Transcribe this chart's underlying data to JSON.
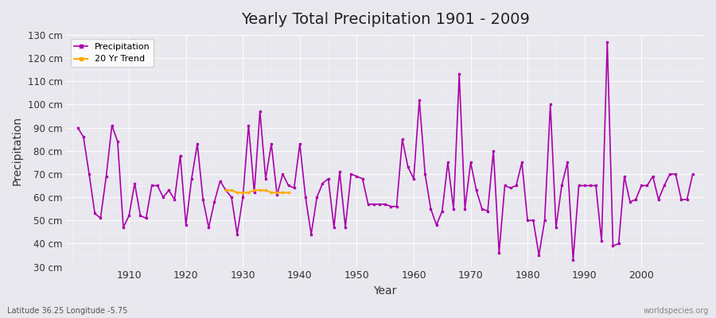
{
  "title": "Yearly Total Precipitation 1901 - 2009",
  "xlabel": "Year",
  "ylabel": "Precipitation",
  "subtitle": "Latitude 36.25 Longitude -5.75",
  "watermark": "worldspecies.org",
  "ylim": [
    30,
    130
  ],
  "ytick_labels": [
    "30 cm",
    "40 cm",
    "50 cm",
    "60 cm",
    "70 cm",
    "80 cm",
    "90 cm",
    "100 cm",
    "110 cm",
    "120 cm",
    "130 cm"
  ],
  "ytick_values": [
    30,
    40,
    50,
    60,
    70,
    80,
    90,
    100,
    110,
    120,
    130
  ],
  "bg_color": "#e8e8ee",
  "line_color": "#aa00aa",
  "trend_color": "#ffaa00",
  "precipitation": {
    "1901": 90,
    "1902": 86,
    "1903": 70,
    "1904": 53,
    "1905": 51,
    "1906": 69,
    "1907": 91,
    "1908": 84,
    "1909": 47,
    "1910": 52,
    "1911": 66,
    "1912": 52,
    "1913": 51,
    "1914": 65,
    "1915": 65,
    "1916": 60,
    "1917": 63,
    "1918": 59,
    "1919": 78,
    "1920": 48,
    "1921": 68,
    "1922": 83,
    "1923": 59,
    "1924": 47,
    "1925": 58,
    "1926": 67,
    "1927": 63,
    "1928": 60,
    "1929": 44,
    "1930": 60,
    "1931": 91,
    "1932": 62,
    "1933": 97,
    "1934": 68,
    "1935": 83,
    "1936": 61,
    "1937": 70,
    "1938": 65,
    "1939": 64,
    "1940": 83,
    "1941": 60,
    "1942": 44,
    "1943": 60,
    "1944": 66,
    "1945": 68,
    "1946": 47,
    "1947": 71,
    "1948": 47,
    "1949": 70,
    "1950": 69,
    "1951": 68,
    "1952": 57,
    "1953": 57,
    "1954": 57,
    "1955": 57,
    "1956": 56,
    "1957": 56,
    "1958": 85,
    "1959": 73,
    "1960": 68,
    "1961": 102,
    "1962": 70,
    "1963": 55,
    "1964": 48,
    "1965": 54,
    "1966": 75,
    "1967": 55,
    "1968": 113,
    "1969": 55,
    "1970": 75,
    "1971": 63,
    "1972": 55,
    "1973": 54,
    "1974": 80,
    "1975": 36,
    "1976": 65,
    "1977": 64,
    "1978": 65,
    "1979": 75,
    "1980": 50,
    "1981": 50,
    "1982": 35,
    "1983": 50,
    "1984": 100,
    "1985": 47,
    "1986": 65,
    "1987": 75,
    "1988": 33,
    "1989": 65,
    "1990": 65,
    "1991": 65,
    "1992": 65,
    "1993": 41,
    "1994": 127,
    "1995": 39,
    "1996": 40,
    "1997": 69,
    "1998": 58,
    "1999": 59,
    "2000": 65,
    "2001": 65,
    "2002": 69,
    "2003": 59,
    "2004": 65,
    "2005": 70,
    "2006": 70,
    "2007": 59,
    "2008": 59,
    "2009": 70
  },
  "trend": {
    "1927": 63,
    "1928": 63,
    "1929": 62,
    "1930": 62,
    "1931": 62,
    "1932": 63,
    "1933": 63,
    "1934": 63,
    "1935": 62,
    "1936": 62,
    "1937": 62,
    "1938": 62
  }
}
